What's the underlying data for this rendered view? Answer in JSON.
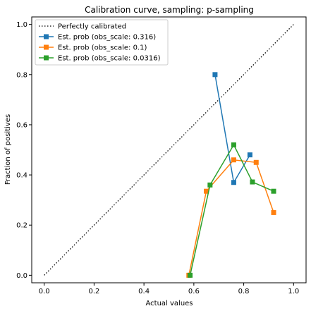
{
  "chart_data": {
    "type": "line",
    "title": "Calibration curve, sampling: p-sampling",
    "xlabel": "Actual values",
    "ylabel": "Fraction of positives",
    "xlim": [
      -0.05,
      1.05
    ],
    "ylim": [
      -0.03,
      1.03
    ],
    "xticks": [
      "0.0",
      "0.2",
      "0.4",
      "0.6",
      "0.8",
      "1.0"
    ],
    "yticks": [
      "0.0",
      "0.2",
      "0.4",
      "0.6",
      "0.8",
      "1.0"
    ],
    "grid": false,
    "legend_position": "top-left",
    "reference": {
      "name": "Perfectly calibrated",
      "color": "#000000",
      "style": "dotted",
      "x": [
        0,
        1
      ],
      "y": [
        0,
        1
      ]
    },
    "series": [
      {
        "name": "Est. prob (obs_scale: 0.316)",
        "color": "#1f77b4",
        "marker": "square",
        "x": [
          0.685,
          0.76,
          0.825
        ],
        "y": [
          0.8,
          0.37,
          0.48
        ]
      },
      {
        "name": "Est. prob (obs_scale: 0.1)",
        "color": "#ff7f0e",
        "marker": "square",
        "x": [
          0.58,
          0.65,
          0.76,
          0.85,
          0.92
        ],
        "y": [
          0.0,
          0.335,
          0.46,
          0.45,
          0.25
        ]
      },
      {
        "name": "Est. prob (obs_scale: 0.0316)",
        "color": "#2ca02c",
        "marker": "square",
        "x": [
          0.585,
          0.665,
          0.76,
          0.835,
          0.92
        ],
        "y": [
          0.0,
          0.36,
          0.52,
          0.372,
          0.335
        ]
      }
    ]
  }
}
